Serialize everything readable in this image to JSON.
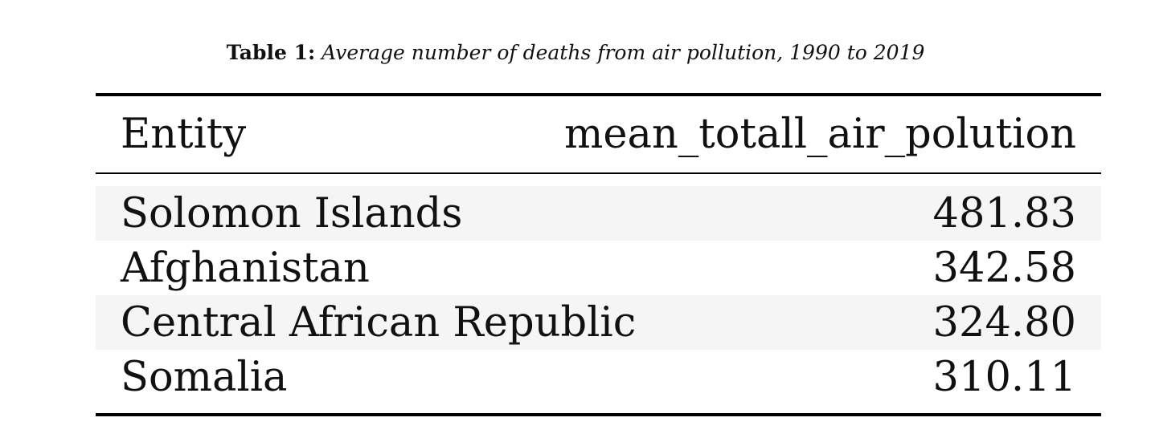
{
  "caption": {
    "label": "Table 1:",
    "text": "Average number of deaths from air pollution, 1990 to 2019"
  },
  "table": {
    "headers": [
      "Entity",
      "mean_totall_air_polution"
    ],
    "rows": [
      {
        "entity": "Solomon Islands",
        "value": "481.83"
      },
      {
        "entity": "Afghanistan",
        "value": "342.58"
      },
      {
        "entity": "Central African Republic",
        "value": "324.80"
      },
      {
        "entity": "Somalia",
        "value": "310.11"
      }
    ]
  }
}
